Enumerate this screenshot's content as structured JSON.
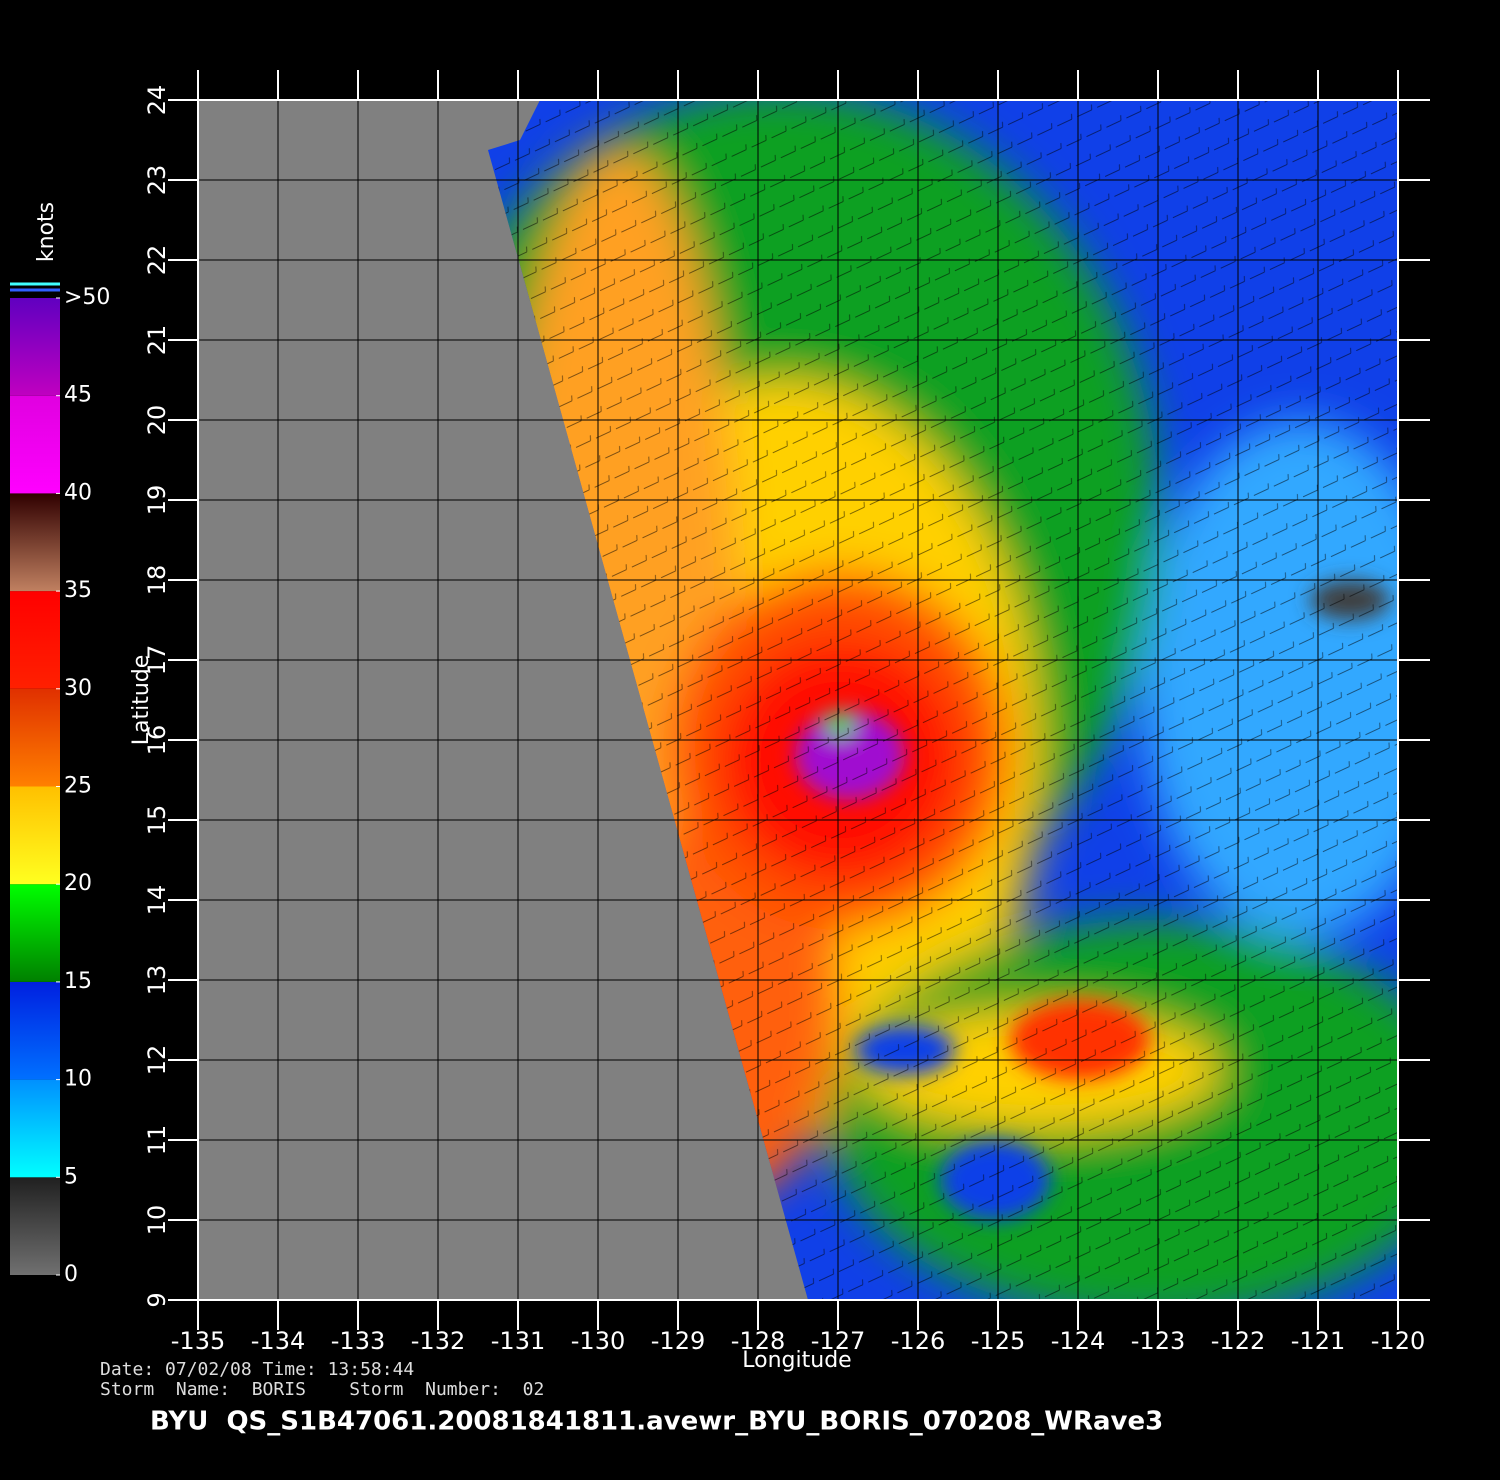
{
  "map": {
    "title": "BYU  QS_S1B47061.20081841811.avewr_BYU_BORIS_070208_WRave3",
    "date_line": "Date: 07/02/08   Time: 13:58:44",
    "storm_line": "Storm  Name:  BORIS    Storm  Number:  02",
    "x_axis": {
      "label": "Longitude",
      "lim": [
        -135,
        -120
      ],
      "ticks": [
        -135,
        -134,
        -133,
        -132,
        -131,
        -130,
        -129,
        -128,
        -127,
        -126,
        -125,
        -124,
        -123,
        -122,
        -121,
        -120
      ]
    },
    "y_axis": {
      "label": "Latitude",
      "lim": [
        9,
        24
      ],
      "ticks": [
        9,
        10,
        11,
        12,
        13,
        14,
        15,
        16,
        17,
        18,
        19,
        20,
        21,
        22,
        23,
        24
      ]
    },
    "colorbar": {
      "label": "knots",
      "lim": [
        0,
        50
      ],
      "ticks": [
        0,
        5,
        10,
        15,
        20,
        25,
        30,
        35,
        40,
        45,
        {
          "value": 50,
          "label": ">50"
        }
      ],
      "colors": [
        [
          "#707070",
          "#202020"
        ],
        [
          "#00ffff",
          "#0090ff"
        ],
        [
          "#0070ff",
          "#0020e0"
        ],
        [
          "#008000",
          "#00ff00"
        ],
        [
          "#ffff20",
          "#ffc000"
        ],
        [
          "#ff8000",
          "#e03000"
        ],
        [
          "#ff2000",
          "#ff0000"
        ],
        [
          "#c08060",
          "#300000"
        ],
        [
          "#ff00ff",
          "#e000e0"
        ],
        [
          "#c000c0",
          "#6000c0"
        ]
      ]
    }
  }
}
